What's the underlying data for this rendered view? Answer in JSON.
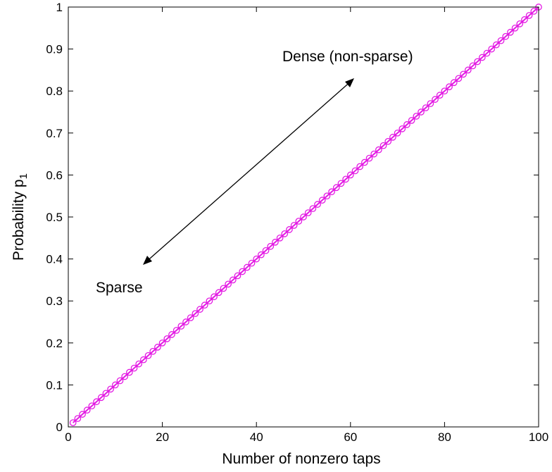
{
  "chart_data": {
    "type": "line",
    "title": "",
    "xlabel": "Number of nonzero taps",
    "ylabel": "Probability p",
    "ylabel_subscript": "1",
    "xlim": [
      0,
      100
    ],
    "ylim": [
      0,
      1
    ],
    "xticks": [
      0,
      20,
      40,
      60,
      80,
      100
    ],
    "xtick_labels": [
      "0",
      "20",
      "40",
      "60",
      "80",
      "100"
    ],
    "yticks": [
      0,
      0.1,
      0.2,
      0.3,
      0.4,
      0.5,
      0.6,
      0.7,
      0.8,
      0.9,
      1
    ],
    "ytick_labels": [
      "0",
      "0.1",
      "0.2",
      "0.3",
      "0.4",
      "0.5",
      "0.6",
      "0.7",
      "0.8",
      "0.9",
      "1"
    ],
    "grid": false,
    "series": [
      {
        "color": "#e31ae3",
        "marker": "circle",
        "x": [
          1,
          100
        ],
        "y": [
          0.01,
          1.0
        ],
        "step": 1
      }
    ],
    "annotations": [
      {
        "text": "Dense (non-sparse)"
      },
      {
        "text": "Sparse"
      }
    ]
  }
}
